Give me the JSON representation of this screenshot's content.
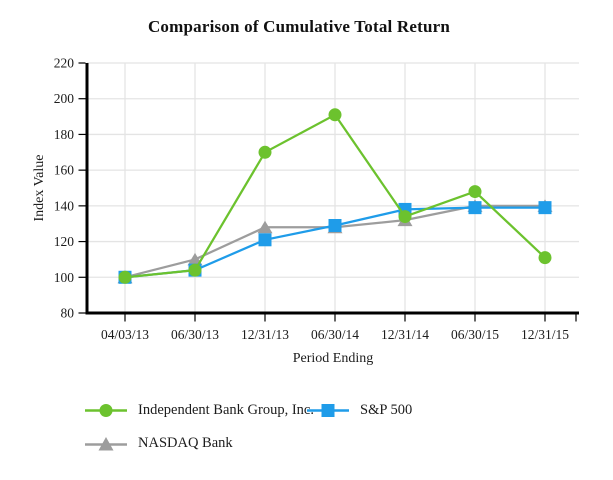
{
  "title": "Comparison of Cumulative Total Return",
  "chart_data": {
    "type": "line",
    "title": "Comparison of Cumulative Total Return",
    "xlabel": "Period Ending",
    "ylabel": "Index Value",
    "categories": [
      "04/03/13",
      "06/30/13",
      "12/31/13",
      "06/30/14",
      "12/31/14",
      "06/30/15",
      "12/31/15"
    ],
    "series": [
      {
        "name": "Independent Bank Group, Inc.",
        "marker": "circle",
        "color": "#6CC22E",
        "values": [
          100,
          104,
          170,
          191,
          134,
          148,
          111
        ]
      },
      {
        "name": "S&P 500",
        "marker": "square",
        "color": "#1F9CE9",
        "values": [
          100,
          104,
          121,
          129,
          138,
          139,
          139
        ]
      },
      {
        "name": "NASDAQ Bank",
        "marker": "triangle",
        "color": "#9D9D9D",
        "values": [
          100,
          110,
          128,
          128,
          132,
          140,
          140
        ]
      }
    ],
    "ylim": [
      80,
      220
    ],
    "ytick_step": 20,
    "yticks": [
      "80",
      "100",
      "120",
      "140",
      "160",
      "180",
      "200",
      "220"
    ],
    "grid": true,
    "legend_position": "bottom-left",
    "axis_color": "#000000",
    "grid_color": "#e4e4e4"
  }
}
